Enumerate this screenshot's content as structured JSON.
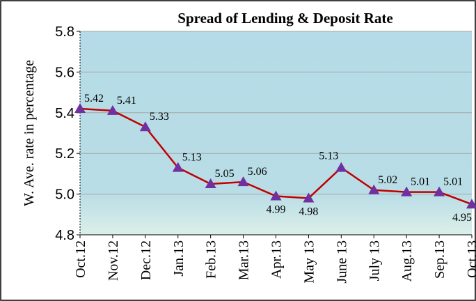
{
  "chart_data": {
    "type": "line",
    "title": "Spread of  Lending & Deposit Rate",
    "y_label": "W. Ave. rate in percentage",
    "categories": [
      "Oct.12",
      "Nov.12",
      "Dec.12",
      "Jan.13",
      "Feb.13",
      "Mar.13",
      "Apr.13",
      "May 13",
      "June 13",
      "July 13",
      "Aug.13",
      "Sep.13",
      "Oct.13"
    ],
    "series": [
      {
        "name": "Spread",
        "color": "#c00000",
        "marker_color": "#7030a0",
        "values": [
          5.42,
          5.41,
          5.33,
          5.13,
          5.05,
          5.06,
          4.99,
          4.98,
          5.13,
          5.02,
          5.01,
          5.01,
          4.95
        ]
      }
    ],
    "ylim": [
      4.8,
      5.8
    ],
    "yticks": [
      4.8,
      {
        "value": 5.0,
        "label": "5.0"
      },
      5.2,
      5.4,
      5.6,
      5.8
    ],
    "grid": true
  }
}
